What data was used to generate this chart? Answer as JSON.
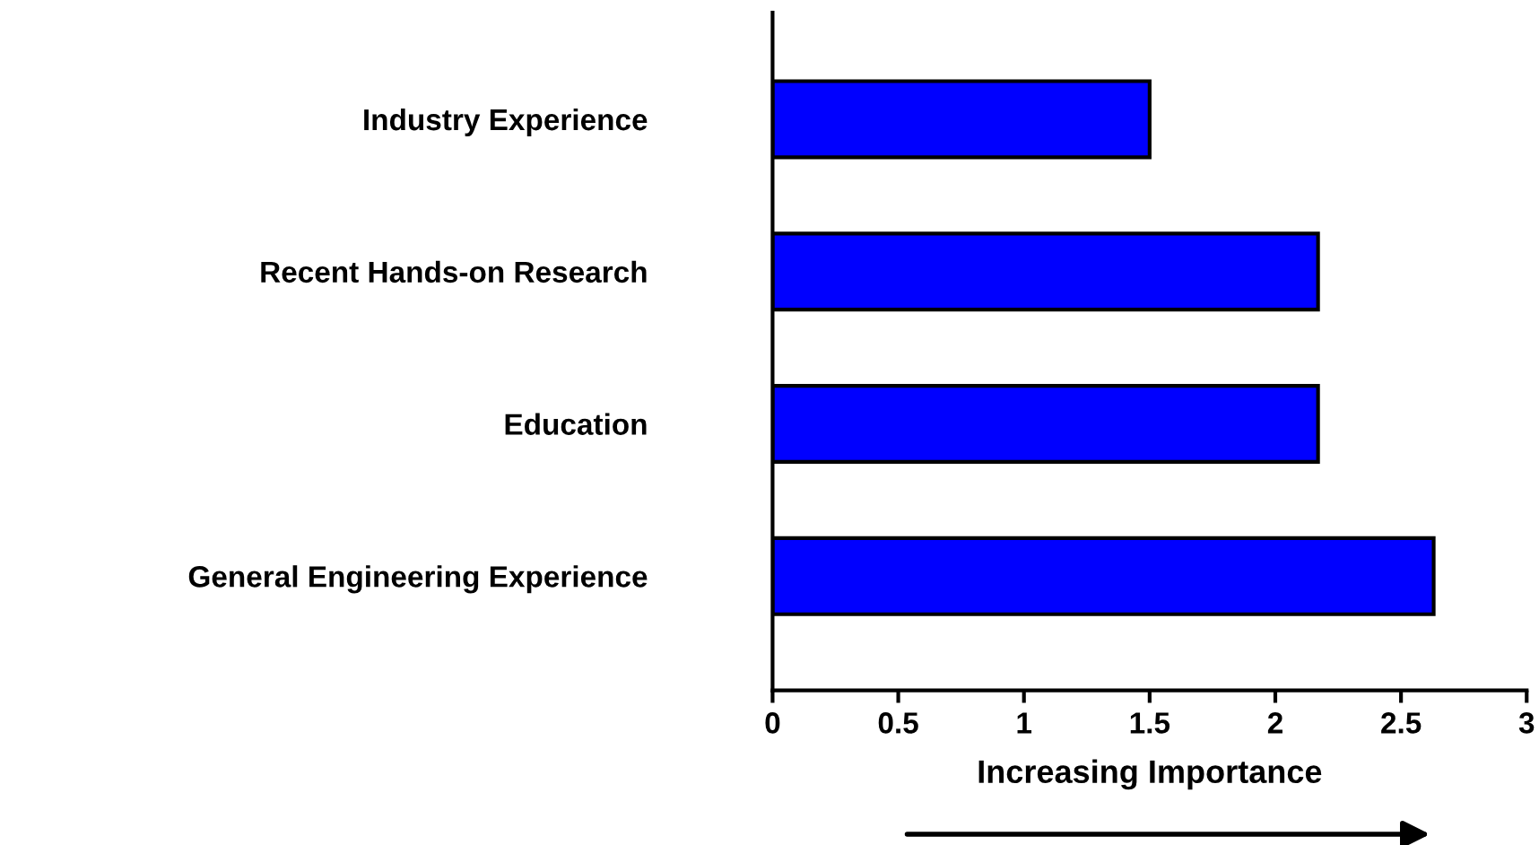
{
  "chart_data": {
    "type": "bar",
    "orientation": "horizontal",
    "xlabel": "Increasing Importance",
    "categories": [
      "Industry Experience",
      "Recent Hands-on Research",
      "Education",
      "General Engineering Experience"
    ],
    "values": [
      1.5,
      2.17,
      2.17,
      2.63
    ],
    "color": "#0000ff",
    "xlim": [
      0,
      3
    ],
    "xticks": [
      0,
      0.5,
      1,
      1.5,
      2,
      2.5,
      3
    ],
    "grid": false,
    "legend": false
  }
}
